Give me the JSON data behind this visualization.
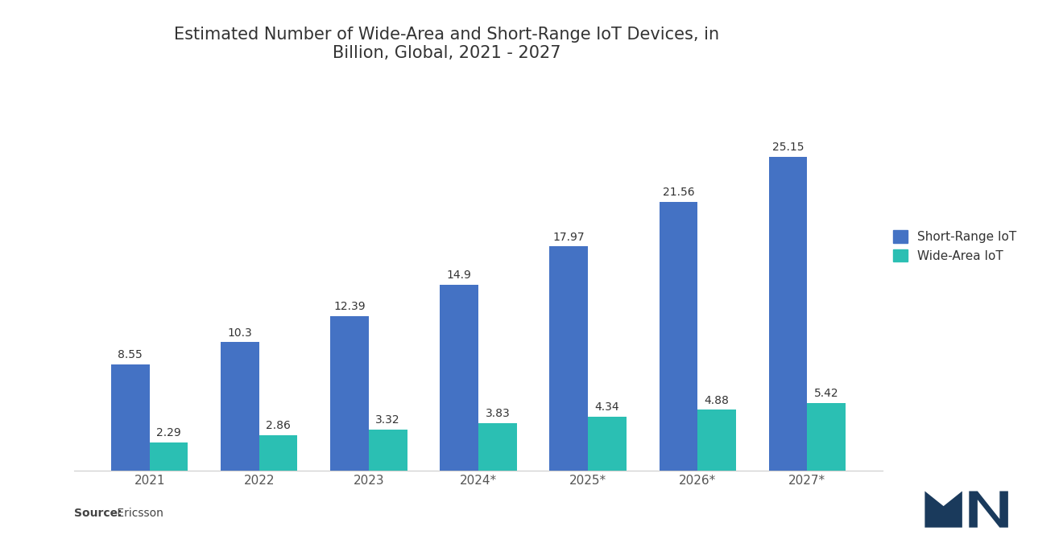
{
  "title": "Estimated Number of Wide-Area and Short-Range IoT Devices, in\nBillion, Global, 2021 - 2027",
  "categories": [
    "2021",
    "2022",
    "2023",
    "2024*",
    "2025*",
    "2026*",
    "2027*"
  ],
  "short_range": [
    8.55,
    10.3,
    12.39,
    14.9,
    17.97,
    21.56,
    25.15
  ],
  "wide_area": [
    2.29,
    2.86,
    3.32,
    3.83,
    4.34,
    4.88,
    5.42
  ],
  "short_range_color": "#4472C4",
  "wide_area_color": "#2BBFB3",
  "background_color": "#FFFFFF",
  "title_fontsize": 15,
  "tick_fontsize": 11,
  "legend_labels": [
    "Short-Range IoT",
    "Wide-Area IoT"
  ],
  "source_label": "Source:",
  "source_text": " Ericsson",
  "ylim": [
    0,
    30
  ],
  "bar_width": 0.35,
  "value_label_fontsize": 10,
  "logo_color": "#1a3a5c"
}
